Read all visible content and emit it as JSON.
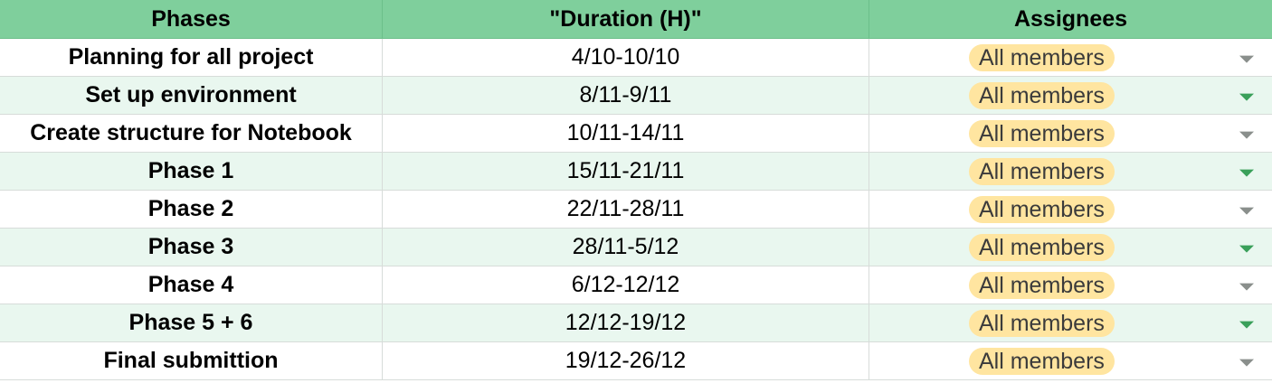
{
  "header": {
    "col_phases": "Phases",
    "col_duration": "\"Duration (H)\"",
    "col_assignees": "Assignees"
  },
  "rows": [
    {
      "phase": "Planning for all project",
      "duration": "4/10-10/10",
      "assignee": "All members"
    },
    {
      "phase": "Set up environment",
      "duration": "8/11-9/11",
      "assignee": "All members"
    },
    {
      "phase": "Create structure for Notebook",
      "duration": "10/11-14/11",
      "assignee": "All members"
    },
    {
      "phase": "Phase 1",
      "duration": "15/11-21/11",
      "assignee": "All members"
    },
    {
      "phase": "Phase 2",
      "duration": "22/11-28/11",
      "assignee": "All members"
    },
    {
      "phase": "Phase 3",
      "duration": "28/11-5/12",
      "assignee": "All members"
    },
    {
      "phase": "Phase 4",
      "duration": "6/12-12/12",
      "assignee": "All members"
    },
    {
      "phase": "Phase 5 + 6",
      "duration": "12/12-19/12",
      "assignee": "All members"
    },
    {
      "phase": "Final submittion",
      "duration": "19/12-26/12",
      "assignee": "All members"
    }
  ],
  "colors": {
    "header_bg": "#7fcf9c",
    "alt_row_bg": "#e9f7ef",
    "chip_bg": "#ffe5a0",
    "dropdown_arrow_gray": "#8a8f8c",
    "dropdown_arrow_green": "#3aa05a"
  },
  "icons": {
    "dropdown": "dropdown-arrow-icon"
  }
}
